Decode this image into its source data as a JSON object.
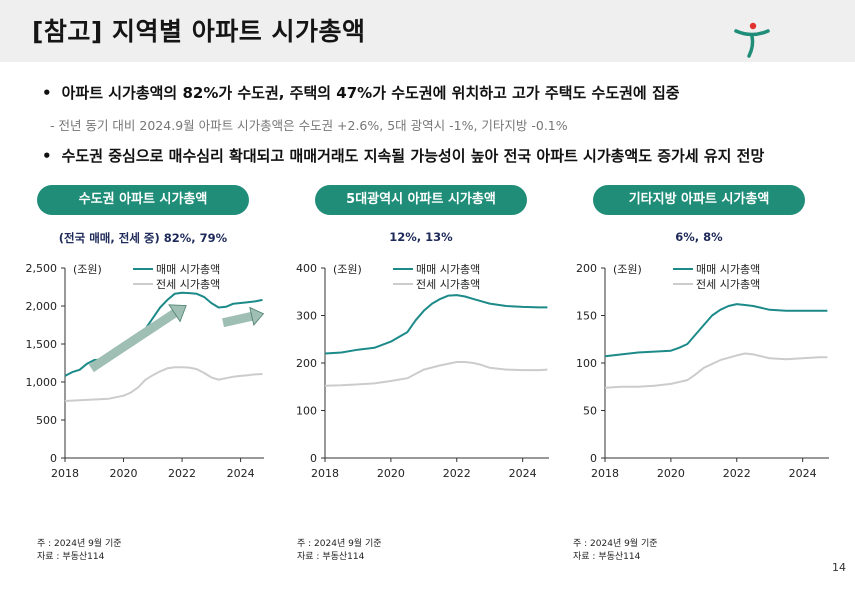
{
  "title": "[참고] 지역별 아파트 시가총액",
  "bullets": [
    "아파트 시가총액의 82%가 수도권, 주택의 47%가 수도권에 위치하고 고가 주택도 수도권에 집중",
    "수도권 중심으로 매수심리 확대되고 매매거래도 지속될 가능성이 높아 전국 아파트 시가총액도 증가세 유지 전망"
  ],
  "sub_bullet": "- 전년 동기 대비 2024.9월 아파트 시가총액은 수도권 +2.6%, 5대 광역시 -1%, 기타지방 -0.1%",
  "page_number": "14",
  "colors": {
    "accent": "#1f8d78",
    "sale": "#1d8a8a",
    "jeonse": "#cccccc",
    "arrow": "#9fbeb4"
  },
  "charts": [
    {
      "pill": "수도권 아파트 시가총액",
      "share": "(전국 매매, 전세 중) 82%, 79%",
      "note1": "주 : 2024년 9월 기준",
      "note2": "자료 : 부동산114"
    },
    {
      "pill": "5대광역시 아파트 시가총액",
      "share": "12%, 13%",
      "note1": "주 : 2024년 9월 기준",
      "note2": "자료 : 부동산114"
    },
    {
      "pill": "기타지방 아파트 시가총액",
      "share": "6%, 8%",
      "note1": "주 : 2024년 9월 기준",
      "note2": "자료 : 부동산114"
    }
  ],
  "chart_data": [
    {
      "type": "line",
      "title": "수도권 아파트 시가총액",
      "unit_label": "(조원)",
      "ylim": [
        0,
        2500
      ],
      "yticks": [
        0,
        500,
        1000,
        1500,
        2000,
        2500
      ],
      "ytick_labels": [
        "0",
        "500",
        "1,000",
        "1,500",
        "2,000",
        "2,500"
      ],
      "xlim": [
        2018,
        2024.8
      ],
      "xticks": [
        2018,
        2020,
        2022,
        2024
      ],
      "xtick_labels": [
        "2018",
        "2020",
        "2022",
        "2024"
      ],
      "series": [
        {
          "name": "매매 시가총액",
          "x": [
            2018,
            2018.25,
            2018.5,
            2018.75,
            2019,
            2019.25,
            2019.5,
            2019.75,
            2020,
            2020.25,
            2020.5,
            2020.75,
            2021,
            2021.25,
            2021.5,
            2021.75,
            2022,
            2022.25,
            2022.5,
            2022.75,
            2023,
            2023.25,
            2023.5,
            2023.75,
            2024,
            2024.25,
            2024.5,
            2024.75
          ],
          "y": [
            1080,
            1130,
            1160,
            1240,
            1290,
            1295,
            1305,
            1360,
            1430,
            1500,
            1570,
            1700,
            1840,
            1980,
            2080,
            2160,
            2175,
            2170,
            2160,
            2120,
            2040,
            1980,
            1990,
            2030,
            2040,
            2050,
            2060,
            2080
          ]
        },
        {
          "name": "전세 시가총액",
          "x": [
            2018,
            2018.5,
            2019,
            2019.5,
            2020,
            2020.25,
            2020.5,
            2020.75,
            2021,
            2021.25,
            2021.5,
            2021.75,
            2022,
            2022.25,
            2022.5,
            2022.75,
            2023,
            2023.25,
            2023.5,
            2023.75,
            2024,
            2024.25,
            2024.5,
            2024.75
          ],
          "y": [
            750,
            760,
            770,
            780,
            820,
            860,
            930,
            1030,
            1090,
            1140,
            1180,
            1195,
            1195,
            1190,
            1170,
            1120,
            1060,
            1030,
            1050,
            1070,
            1080,
            1090,
            1100,
            1105
          ]
        }
      ],
      "annotations": [
        "rising arrow 2019-2022",
        "right arrow 2023-2024"
      ]
    },
    {
      "type": "line",
      "title": "5대광역시 아파트 시가총액",
      "unit_label": "(조원)",
      "ylim": [
        0,
        400
      ],
      "yticks": [
        0,
        100,
        200,
        300,
        400
      ],
      "ytick_labels": [
        "0",
        "100",
        "200",
        "300",
        "400"
      ],
      "xlim": [
        2018,
        2024.8
      ],
      "xticks": [
        2018,
        2020,
        2022,
        2024
      ],
      "xtick_labels": [
        "2018",
        "2020",
        "2022",
        "2024"
      ],
      "series": [
        {
          "name": "매매 시가총액",
          "x": [
            2018,
            2018.5,
            2019,
            2019.5,
            2020,
            2020.25,
            2020.5,
            2020.75,
            2021,
            2021.25,
            2021.5,
            2021.75,
            2022,
            2022.25,
            2022.5,
            2022.75,
            2023,
            2023.5,
            2024,
            2024.5,
            2024.75
          ],
          "y": [
            220,
            222,
            228,
            232,
            245,
            255,
            265,
            290,
            310,
            325,
            335,
            342,
            343,
            340,
            335,
            330,
            325,
            320,
            318,
            317,
            317
          ]
        },
        {
          "name": "전세 시가총액",
          "x": [
            2018,
            2018.5,
            2019,
            2019.5,
            2020,
            2020.5,
            2020.75,
            2021,
            2021.5,
            2022,
            2022.25,
            2022.5,
            2022.75,
            2023,
            2023.5,
            2024,
            2024.5,
            2024.75
          ],
          "y": [
            152,
            153,
            155,
            157,
            162,
            168,
            177,
            186,
            195,
            202,
            202,
            200,
            196,
            190,
            186,
            185,
            185,
            186
          ]
        }
      ]
    },
    {
      "type": "line",
      "title": "기타지방 아파트 시가총액",
      "unit_label": "(조원)",
      "ylim": [
        0,
        200
      ],
      "yticks": [
        0,
        50,
        100,
        150,
        200
      ],
      "ytick_labels": [
        "0",
        "50",
        "100",
        "150",
        "200"
      ],
      "xlim": [
        2018,
        2024.8
      ],
      "xticks": [
        2018,
        2020,
        2022,
        2024
      ],
      "xtick_labels": [
        "2018",
        "2020",
        "2022",
        "2024"
      ],
      "series": [
        {
          "name": "매매 시가총액",
          "x": [
            2018,
            2018.5,
            2019,
            2019.5,
            2020,
            2020.25,
            2020.5,
            2020.75,
            2021,
            2021.25,
            2021.5,
            2021.75,
            2022,
            2022.25,
            2022.5,
            2022.75,
            2023,
            2023.5,
            2024,
            2024.5,
            2024.75
          ],
          "y": [
            107,
            109,
            111,
            112,
            113,
            116,
            120,
            130,
            140,
            150,
            156,
            160,
            162,
            161,
            160,
            158,
            156,
            155,
            155,
            155,
            155
          ]
        },
        {
          "name": "전세 시가총액",
          "x": [
            2018,
            2018.5,
            2019,
            2019.5,
            2020,
            2020.5,
            2020.75,
            2021,
            2021.5,
            2022,
            2022.25,
            2022.5,
            2022.75,
            2023,
            2023.5,
            2024,
            2024.5,
            2024.75
          ],
          "y": [
            74,
            75,
            75,
            76,
            78,
            82,
            88,
            95,
            103,
            108,
            110,
            109,
            107,
            105,
            104,
            105,
            106,
            106
          ]
        }
      ]
    }
  ]
}
